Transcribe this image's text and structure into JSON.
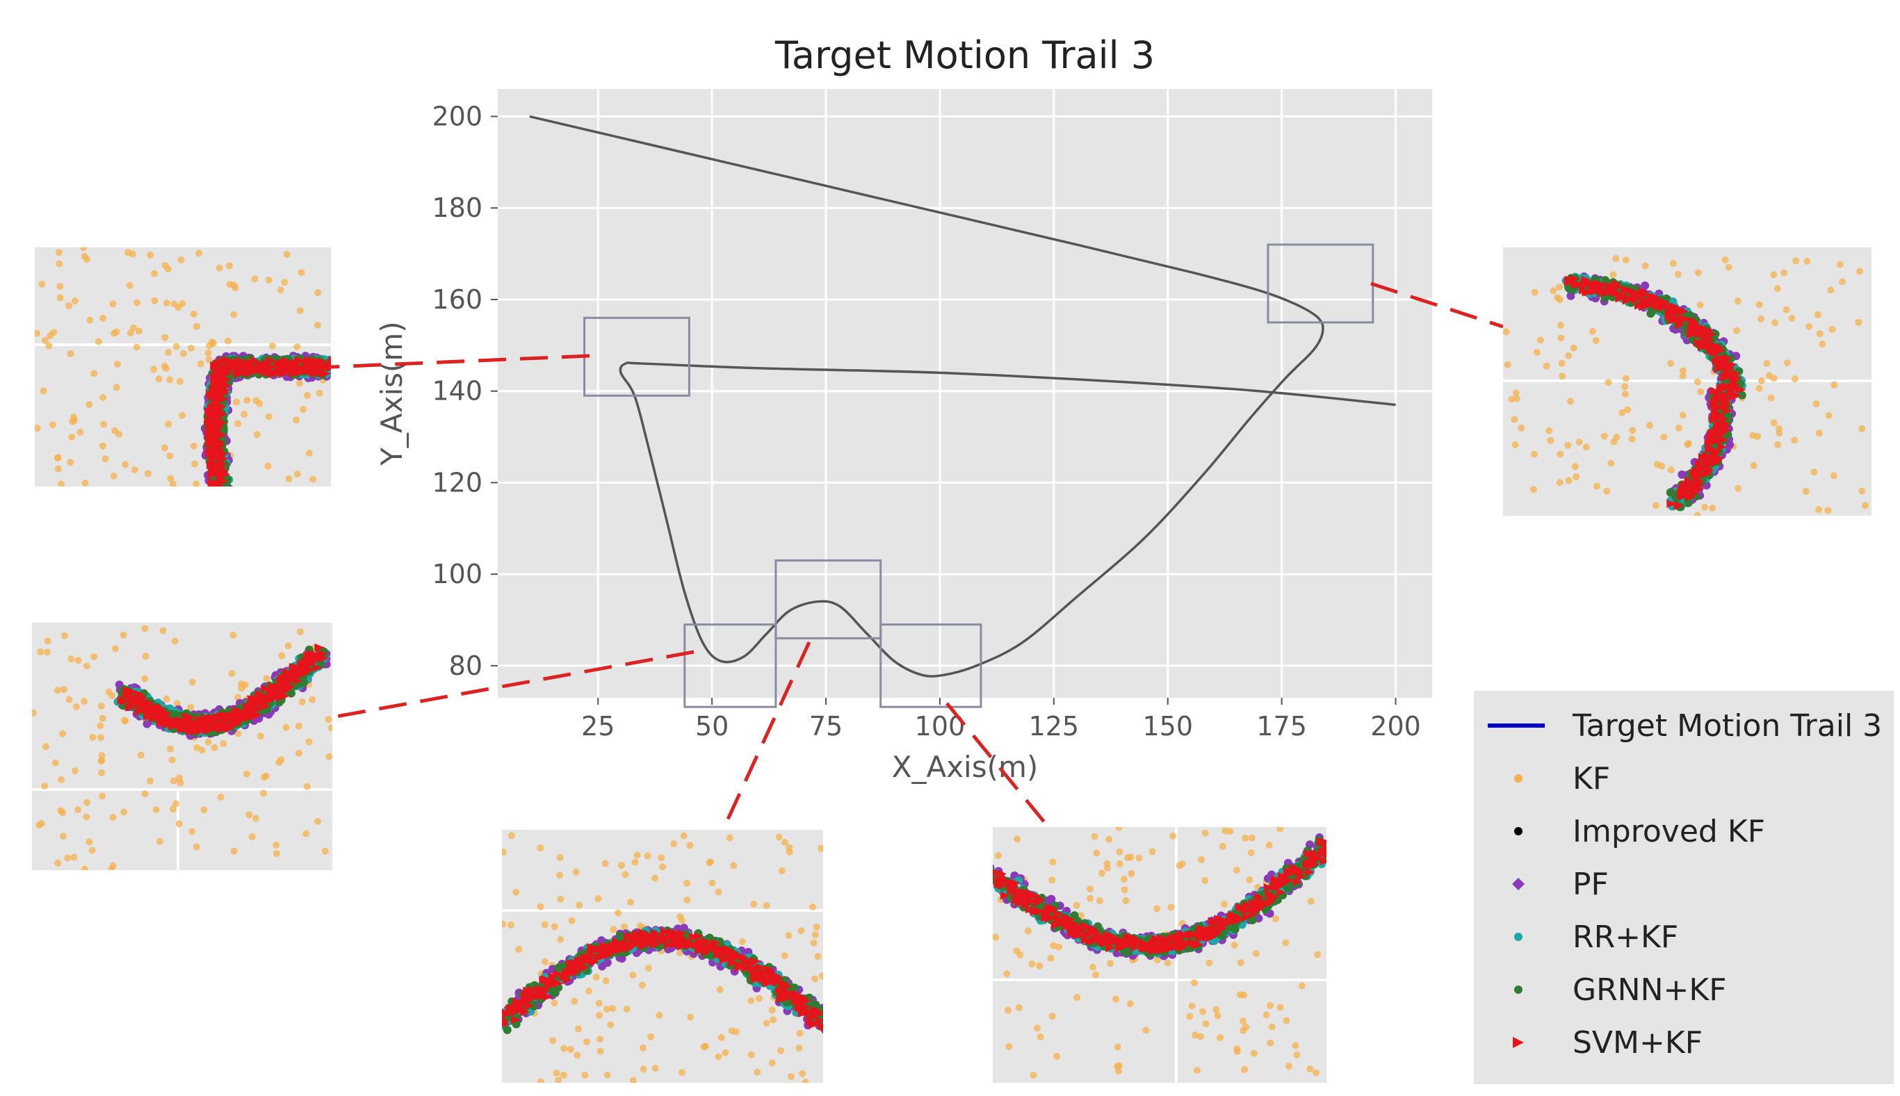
{
  "chart_data": {
    "type": "line",
    "title": "Target Motion Trail 3",
    "xlabel": "X_Axis(m)",
    "ylabel": "Y_Axis(m)",
    "xlim": [
      3,
      208
    ],
    "ylim": [
      73,
      206
    ],
    "xticks": [
      25,
      50,
      75,
      100,
      125,
      150,
      175,
      200
    ],
    "yticks": [
      80,
      100,
      120,
      140,
      160,
      180,
      200
    ],
    "xtick_labels": [
      "25",
      "50",
      "75",
      "100",
      "125",
      "150",
      "175",
      "200"
    ],
    "ytick_labels": [
      "80",
      "100",
      "120",
      "140",
      "160",
      "180",
      "200"
    ],
    "grid": true,
    "series": [
      {
        "name": "Target Motion Trail 3",
        "x": [
          10,
          40,
          70,
          100,
          130,
          155,
          170,
          178,
          183,
          184,
          182,
          176,
          168,
          158,
          145,
          130,
          118,
          108,
          101,
          96,
          90,
          84,
          78,
          73,
          67,
          62,
          57,
          52,
          48,
          44,
          40,
          36,
          33,
          30,
          31,
          35,
          60,
          100,
          140,
          170,
          200
        ],
        "y": [
          200,
          193,
          186,
          179,
          172,
          166,
          162,
          159,
          156,
          153,
          149,
          143,
          134,
          122,
          108,
          95,
          85,
          80,
          78,
          78,
          81,
          87,
          93,
          94,
          92,
          87,
          82,
          81,
          85,
          96,
          112,
          128,
          139,
          144,
          146,
          146,
          145,
          144,
          142,
          140,
          137
        ]
      }
    ],
    "zoom_boxes": [
      {
        "x": [
          22,
          45
        ],
        "y": [
          139,
          156
        ]
      },
      {
        "x": [
          172,
          195
        ],
        "y": [
          155,
          172
        ]
      },
      {
        "x": [
          44,
          64
        ],
        "y": [
          71,
          89
        ]
      },
      {
        "x": [
          64,
          87
        ],
        "y": [
          86,
          103
        ]
      },
      {
        "x": [
          87,
          109
        ],
        "y": [
          71,
          89
        ]
      }
    ],
    "legend": {
      "placement": "lower-right-outside",
      "entries": [
        {
          "label": "Target Motion Trail 3",
          "marker": "line",
          "color": "#0000cc"
        },
        {
          "label": "KF",
          "marker": "dot",
          "color": "#f5b04a"
        },
        {
          "label": "Improved KF",
          "marker": "dot",
          "color": "#000000"
        },
        {
          "label": "PF",
          "marker": "diamond",
          "color": "#8a3ab9"
        },
        {
          "label": "RR+KF",
          "marker": "dot",
          "color": "#1fa7a8"
        },
        {
          "label": "GRNN+KF",
          "marker": "dot",
          "color": "#2e7d32"
        },
        {
          "label": "SVM+KF",
          "marker": "triangle",
          "color": "#e8141c"
        }
      ]
    },
    "colors": {
      "plot_background": "#e5e5e5",
      "grid": "#ffffff",
      "trail_main": "#555555",
      "zoom_box": "#8a8aa0",
      "connector": "#dd2222"
    }
  }
}
